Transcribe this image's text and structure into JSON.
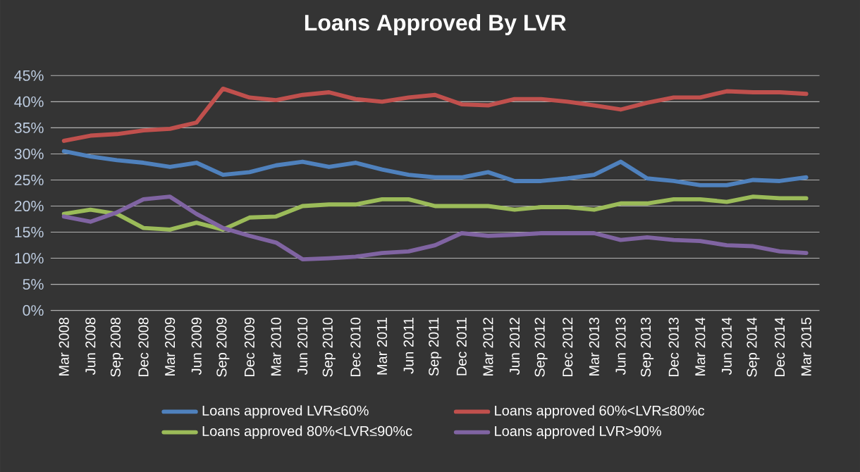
{
  "chart_data": {
    "type": "line",
    "title": "Loans Approved By LVR",
    "categories": [
      "Mar 2008",
      "Jun 2008",
      "Sep 2008",
      "Dec 2008",
      "Mar 2009",
      "Jun 2009",
      "Sep 2009",
      "Dec 2009",
      "Mar 2010",
      "Jun 2010",
      "Sep 2010",
      "Dec 2010",
      "Mar 2011",
      "Jun 2011",
      "Sep 2011",
      "Dec 2011",
      "Mar 2012",
      "Jun 2012",
      "Sep 2012",
      "Dec 2012",
      "Mar 2013",
      "Jun 2013",
      "Sep 2013",
      "Dec 2013",
      "Mar 2014",
      "Jun 2014",
      "Sep 2014",
      "Dec 2014",
      "Mar 2015"
    ],
    "series": [
      {
        "name": "Loans approved LVR≤60%",
        "color": "#4f81bd",
        "values": [
          30.5,
          29.5,
          28.8,
          28.3,
          27.5,
          28.3,
          26.0,
          26.5,
          27.8,
          28.5,
          27.5,
          28.3,
          27.0,
          26.0,
          25.5,
          25.5,
          26.5,
          24.8,
          24.8,
          25.3,
          26.0,
          28.5,
          25.3,
          24.8,
          24.0,
          24.0,
          25.0,
          24.8,
          25.5
        ]
      },
      {
        "name": "Loans approved 60%<LVR≤80%c",
        "color": "#c0504d",
        "values": [
          32.5,
          33.5,
          33.8,
          34.5,
          34.8,
          36.0,
          42.5,
          40.8,
          40.3,
          41.3,
          41.8,
          40.5,
          40.0,
          40.8,
          41.3,
          39.5,
          39.3,
          40.5,
          40.5,
          40.0,
          39.3,
          38.5,
          39.8,
          40.8,
          40.8,
          42.0,
          41.8,
          41.8,
          41.5
        ]
      },
      {
        "name": "Loans approved 80%<LVR≤90%c",
        "color": "#9bbb59",
        "values": [
          18.5,
          19.3,
          18.5,
          15.8,
          15.5,
          16.8,
          15.5,
          17.8,
          18.0,
          20.0,
          20.3,
          20.3,
          21.3,
          21.3,
          20.0,
          20.0,
          20.0,
          19.3,
          19.8,
          19.8,
          19.3,
          20.5,
          20.5,
          21.3,
          21.3,
          20.8,
          21.8,
          21.5,
          21.5
        ]
      },
      {
        "name": "Loans approved LVR>90%",
        "color": "#8064a2",
        "values": [
          18.0,
          17.0,
          18.8,
          21.3,
          21.8,
          18.5,
          15.8,
          14.3,
          13.0,
          9.8,
          10.0,
          10.3,
          11.0,
          11.3,
          12.5,
          14.8,
          14.3,
          14.5,
          14.8,
          14.8,
          14.8,
          13.5,
          14.0,
          13.5,
          13.3,
          12.5,
          12.3,
          11.3,
          11.0
        ]
      }
    ],
    "ylim": [
      0,
      45
    ],
    "yticks": [
      {
        "value": 0,
        "label": "0%"
      },
      {
        "value": 5,
        "label": "5%"
      },
      {
        "value": 10,
        "label": "10%"
      },
      {
        "value": 15,
        "label": "15%"
      },
      {
        "value": 20,
        "label": "20%"
      },
      {
        "value": 25,
        "label": "25%"
      },
      {
        "value": 30,
        "label": "30%"
      },
      {
        "value": 35,
        "label": "35%"
      },
      {
        "value": 40,
        "label": "40%"
      },
      {
        "value": 45,
        "label": "45%"
      }
    ],
    "grid": "y",
    "legend": "bottom",
    "marker": "none",
    "line_style": "solid"
  }
}
